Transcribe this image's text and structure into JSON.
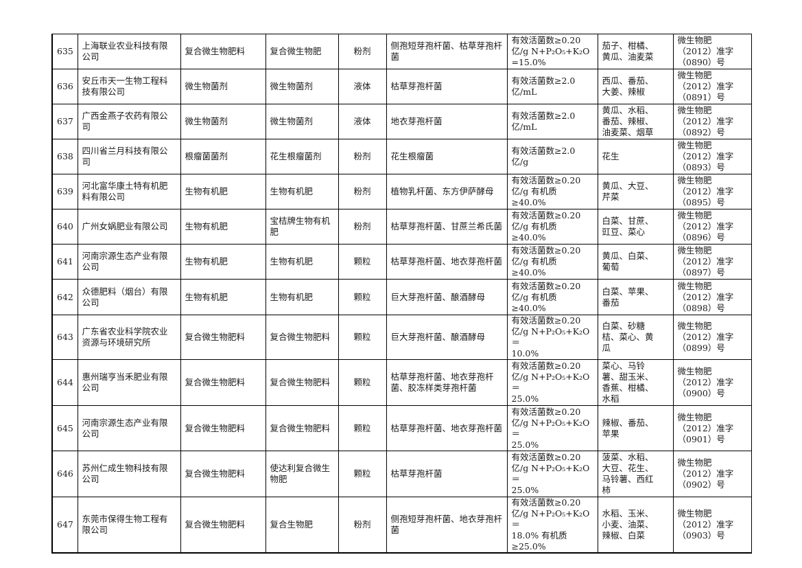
{
  "rows": [
    {
      "no": "635",
      "company": "上海联业农业科技有限公司",
      "category": "复合微生物肥料",
      "product": "复合微生物肥",
      "form": "粉剂",
      "strain": "侧孢短芽孢杆菌、枯草芽孢杆菌",
      "content": [
        "有效活菌数≥0.20",
        "亿/g N+P₂O₅+K₂O",
        "=15.0%"
      ],
      "crops": [
        "茄子、柑橘、",
        "黄瓜、油麦菜"
      ],
      "reg": [
        "微生物肥",
        "（2012）准字",
        "（0890）号"
      ]
    },
    {
      "no": "636",
      "company": "安丘市天一生物工程科技有限公司",
      "category": "微生物菌剂",
      "product": "微生物菌剂",
      "form": "液体",
      "strain": "枯草芽孢杆菌",
      "content": [
        "有效活菌数≥2.0",
        "亿/mL"
      ],
      "crops": [
        "西瓜、番茄、",
        "大姜、辣椒"
      ],
      "reg": [
        "微生物肥",
        "（2012）准字",
        "（0891）号"
      ]
    },
    {
      "no": "637",
      "company": "广西金燕子农药有限公司",
      "category": "微生物菌剂",
      "product": "微生物菌剂",
      "form": "液体",
      "strain": "地衣芽孢杆菌",
      "content": [
        "有效活菌数≥2.0",
        "亿/mL"
      ],
      "crops": [
        "黄瓜、水稻、",
        "番茄、辣椒、",
        "油麦菜、烟草"
      ],
      "reg": [
        "微生物肥",
        "（2012）准字",
        "（0892）号"
      ]
    },
    {
      "no": "638",
      "company": "四川省兰月科技有限公司",
      "category": "根瘤菌菌剂",
      "product": "花生根瘤菌剂",
      "form": "粉剂",
      "strain": "花生根瘤菌",
      "content": [
        "有效活菌数≥2.0",
        "亿/g"
      ],
      "crops": [
        "花生"
      ],
      "reg": [
        "微生物肥",
        "（2012）准字",
        "（0893）号"
      ]
    },
    {
      "no": "639",
      "company": "河北富华康土特有机肥料有限公司",
      "category": "生物有机肥",
      "product": "生物有机肥",
      "form": "粉剂",
      "strain": "植物乳杆菌、东方伊萨酵母",
      "content": [
        "有效活菌数≥0.20",
        "亿/g 有机质",
        "≥40.0%"
      ],
      "crops": [
        "黄瓜、大豆、",
        "芹菜"
      ],
      "reg": [
        "微生物肥",
        "（2012）准字",
        "（0895）号"
      ]
    },
    {
      "no": "640",
      "company": "广州女娲肥业有限公司",
      "category": "生物有机肥",
      "product": "宝桔牌生物有机肥",
      "form": "粉剂",
      "strain": "枯草芽孢杆菌、甘蔗兰希氏菌",
      "content": [
        "有效活菌数≥0.20",
        "亿/g 有机质",
        "≥40.0%"
      ],
      "crops": [
        "白菜、甘蔗、",
        "豇豆、菜心"
      ],
      "reg": [
        "微生物肥",
        "（2012）准字",
        "（0896）号"
      ]
    },
    {
      "no": "641",
      "company": "河南宗源生态产业有限公司",
      "category": "生物有机肥",
      "product": "生物有机肥",
      "form": "颗粒",
      "strain": "枯草芽孢杆菌、地衣芽孢杆菌",
      "content": [
        "有效活菌数≥0.20",
        "亿/g 有机质",
        "≥40.0%"
      ],
      "crops": [
        "黄瓜、白菜、",
        "葡萄"
      ],
      "reg": [
        "微生物肥",
        "（2012）准字",
        "（0897）号"
      ]
    },
    {
      "no": "642",
      "company": "众德肥料（烟台）有限公司",
      "category": "生物有机肥",
      "product": "生物有机肥",
      "form": "颗粒",
      "strain": "巨大芽孢杆菌、酿酒酵母",
      "content": [
        "有效活菌数≥0.20",
        "亿/g 有机质",
        "≥40.0%"
      ],
      "crops": [
        "白菜、苹果、",
        "番茄"
      ],
      "reg": [
        "微生物肥",
        "（2012）准字",
        "（0898）号"
      ]
    },
    {
      "no": "643",
      "company": "广东省农业科学院农业资源与环境研究所",
      "category": "复合微生物肥料",
      "product": "复合微生物肥料",
      "form": "颗粒",
      "strain": "巨大芽孢杆菌、酿酒酵母",
      "content": [
        "有效活菌数≥0.20",
        "亿/g N+P₂O₅+K₂O＝",
        "10.0%"
      ],
      "crops": [
        "白菜、砂糖",
        "桔、菜心、黄",
        "瓜"
      ],
      "reg": [
        "微生物肥",
        "（2012）准字",
        "（0899）号"
      ]
    },
    {
      "no": "644",
      "company": "惠州瑞亨当禾肥业有限公司",
      "category": "复合微生物肥料",
      "product": "复合微生物肥料",
      "form": "颗粒",
      "strain": "枯草芽孢杆菌、地衣芽孢杆菌、胶冻样类芽孢杆菌",
      "content": [
        "有效活菌数≥0.20",
        "亿/g N+P₂O₅+K₂O＝",
        "25.0%"
      ],
      "crops": [
        "菜心、马铃",
        "薯、甜玉米、",
        "香蕉、柑橘、",
        "水稻"
      ],
      "reg": [
        "微生物肥",
        "（2012）准字",
        "（0900）号"
      ]
    },
    {
      "no": "645",
      "company": "河南宗源生态产业有限公司",
      "category": "复合微生物肥料",
      "product": "复合微生物肥料",
      "form": "颗粒",
      "strain": "枯草芽孢杆菌、地衣芽孢杆菌",
      "content": [
        "有效活菌数≥0.20",
        "亿/g N+P₂O₅+K₂O＝",
        "25.0%"
      ],
      "crops": [
        "辣椒、番茄、",
        "苹果"
      ],
      "reg": [
        "微生物肥",
        "（2012）准字",
        "（0901）号"
      ]
    },
    {
      "no": "646",
      "company": "苏州仁成生物科技有限公司",
      "category": "复合微生物肥料",
      "product": "使达利复合微生物肥",
      "form": "颗粒",
      "strain": "枯草芽孢杆菌",
      "content": [
        "有效活菌数≥0.20",
        "亿/g N+P₂O₅+K₂O＝",
        "25.0%"
      ],
      "crops": [
        "菠菜、水稻、",
        "大豆、花生、",
        "马铃薯、西红",
        "柿"
      ],
      "reg": [
        "微生物肥",
        "（2012）准字",
        "（0902）号"
      ]
    },
    {
      "no": "647",
      "company": "东莞市保得生物工程有限公司",
      "category": "复合微生物肥料",
      "product": "复合生物肥",
      "form": "粉剂",
      "strain": "侧孢短芽孢杆菌、地衣芽孢杆菌",
      "content": [
        "有效活菌数≥0.20",
        "亿/g N+P₂O₅+K₂O＝",
        "18.0% 有机质",
        "≥25.0%"
      ],
      "crops": [
        "水稻、玉米、",
        "小麦、油菜、",
        "辣椒、白菜"
      ],
      "reg": [
        "微生物肥",
        "（2012）准字",
        "（0903）号"
      ]
    }
  ]
}
